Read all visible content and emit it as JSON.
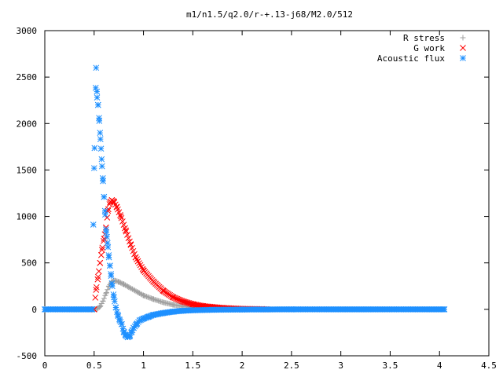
{
  "chart_data": {
    "type": "scatter",
    "title": "m1/n1.5/q2.0/r-+.13-j68/M2.0/512",
    "xlabel": "",
    "ylabel": "",
    "xlim": [
      0,
      4.5
    ],
    "ylim": [
      -500,
      3000
    ],
    "xticks": [
      "0",
      "0.5",
      "1",
      "1.5",
      "2",
      "2.5",
      "3",
      "3.5",
      "4",
      "4.5"
    ],
    "yticks": [
      "-500",
      "0",
      "500",
      "1000",
      "1500",
      "2000",
      "2500",
      "3000"
    ],
    "grid": false,
    "legend_position": "top-right",
    "series": [
      {
        "name": "R stress",
        "marker": "plus",
        "color": "#a0a0a0",
        "points": [
          [
            0.0,
            0
          ],
          [
            0.5,
            0
          ],
          [
            0.53,
            5
          ],
          [
            0.56,
            30
          ],
          [
            0.59,
            90
          ],
          [
            0.62,
            170
          ],
          [
            0.65,
            250
          ],
          [
            0.68,
            300
          ],
          [
            0.71,
            310
          ],
          [
            0.75,
            295
          ],
          [
            0.8,
            270
          ],
          [
            0.85,
            240
          ],
          [
            0.9,
            210
          ],
          [
            0.95,
            180
          ],
          [
            1.0,
            150
          ],
          [
            1.1,
            110
          ],
          [
            1.2,
            75
          ],
          [
            1.3,
            50
          ],
          [
            1.4,
            32
          ],
          [
            1.5,
            20
          ],
          [
            1.6,
            12
          ],
          [
            1.8,
            5
          ],
          [
            2.0,
            2
          ],
          [
            2.3,
            0
          ],
          [
            4.05,
            0
          ]
        ]
      },
      {
        "name": "G work",
        "marker": "cross",
        "color": "#ff0000",
        "points": [
          [
            0.5,
            0
          ],
          [
            0.52,
            210
          ],
          [
            0.54,
            350
          ],
          [
            0.56,
            500
          ],
          [
            0.58,
            640
          ],
          [
            0.6,
            760
          ],
          [
            0.62,
            880
          ],
          [
            0.64,
            1060
          ],
          [
            0.66,
            1150
          ],
          [
            0.68,
            1175
          ],
          [
            0.7,
            1160
          ],
          [
            0.73,
            1100
          ],
          [
            0.77,
            1000
          ],
          [
            0.82,
            850
          ],
          [
            0.87,
            700
          ],
          [
            0.92,
            560
          ],
          [
            1.0,
            420
          ],
          [
            1.1,
            300
          ],
          [
            1.2,
            200
          ],
          [
            1.3,
            130
          ],
          [
            1.4,
            85
          ],
          [
            1.5,
            55
          ],
          [
            1.6,
            35
          ],
          [
            1.8,
            15
          ],
          [
            2.0,
            5
          ],
          [
            2.2,
            2
          ],
          [
            2.25,
            0
          ]
        ]
      },
      {
        "name": "Acoustic flux",
        "marker": "star",
        "color": "#1e90ff",
        "points": [
          [
            0.0,
            0
          ],
          [
            0.48,
            0
          ],
          [
            0.5,
            1520
          ],
          [
            0.52,
            2600
          ],
          [
            0.53,
            2280
          ],
          [
            0.54,
            2200
          ],
          [
            0.55,
            2060
          ],
          [
            0.56,
            1900
          ],
          [
            0.57,
            1730
          ],
          [
            0.58,
            1540
          ],
          [
            0.59,
            1380
          ],
          [
            0.6,
            1210
          ],
          [
            0.61,
            1060
          ],
          [
            0.62,
            860
          ],
          [
            0.63,
            780
          ],
          [
            0.64,
            670
          ],
          [
            0.65,
            560
          ],
          [
            0.66,
            470
          ],
          [
            0.67,
            380
          ],
          [
            0.68,
            280
          ],
          [
            0.7,
            130
          ],
          [
            0.72,
            20
          ],
          [
            0.74,
            -60
          ],
          [
            0.76,
            -120
          ],
          [
            0.78,
            -160
          ],
          [
            0.8,
            -240
          ],
          [
            0.82,
            -280
          ],
          [
            0.84,
            -300
          ],
          [
            0.86,
            -290
          ],
          [
            0.88,
            -240
          ],
          [
            0.9,
            -200
          ],
          [
            0.93,
            -160
          ],
          [
            0.96,
            -120
          ],
          [
            1.0,
            -100
          ],
          [
            1.05,
            -80
          ],
          [
            1.1,
            -60
          ],
          [
            1.2,
            -40
          ],
          [
            1.3,
            -25
          ],
          [
            1.4,
            -15
          ],
          [
            1.5,
            -10
          ],
          [
            1.7,
            -5
          ],
          [
            2.0,
            -2
          ],
          [
            2.5,
            0
          ],
          [
            4.05,
            0
          ]
        ]
      }
    ]
  }
}
